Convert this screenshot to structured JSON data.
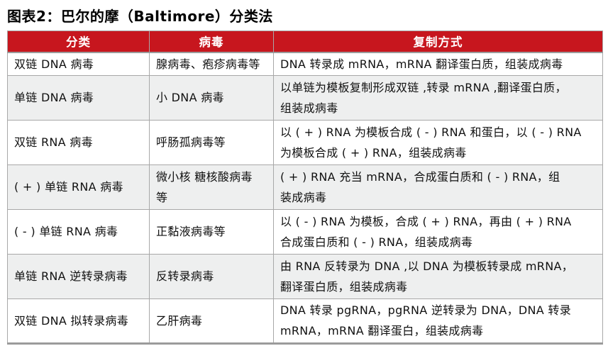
{
  "page": {
    "title": "图表2：巴尔的摩（Baltimore）分类法"
  },
  "colors": {
    "header_bg": "#C7161E",
    "header_text": "#FFFFFF",
    "row_alt_bg": "#EEEFEF",
    "border": "#A8A8A8",
    "border_dark": "#9B9B9B",
    "title_text": "#000000"
  },
  "table": {
    "headers": [
      "分类",
      "病毒",
      "复制方式"
    ],
    "rows": [
      {
        "category": "双链 DNA 病毒",
        "virus": "腺病毒、疱疹病毒等",
        "replication": "DNA 转录成 mRNA，mRNA 翻译蛋白质，组装成病毒"
      },
      {
        "category": "单链 DNA 病毒",
        "virus": "小 DNA 病毒",
        "replication": "以单链为模板复制形成双链 ,转录 mRNA ,翻译蛋白质，\n组装成病毒"
      },
      {
        "category": "双链 RNA 病毒",
        "virus": "呼肠孤病毒等",
        "replication": "以 ( + ) RNA 为模板合成 ( - ) RNA 和蛋白，以 ( - ) RNA\n为模板合成 ( + ) RNA，组装成病毒"
      },
      {
        "category": "( + ) 单链 RNA 病毒",
        "virus": "微小核 糖核酸病毒\n等",
        "replication": "( + ) RNA 充当 mRNA，合成蛋白质和 ( - ) RNA，组\n装成病毒"
      },
      {
        "category": "( - ) 单链 RNA 病毒",
        "virus": "正黏液病毒等",
        "replication": "以 ( - ) RNA 为模板，合成 ( + ) RNA，再由 ( + ) RNA\n合成蛋白质和 ( - ) RNA，组装成病毒"
      },
      {
        "category": "单链 RNA 逆转录病毒",
        "virus": "反转录病毒",
        "replication": "由 RNA 反转录为 DNA ,以 DNA 为模板转录成 mRNA，\n翻译蛋白质，组装成病毒"
      },
      {
        "category": "双链 DNA 拟转录病毒",
        "virus": "乙肝病毒",
        "replication": "DNA 转录 pgRNA，pgRNA 逆转录为 DNA，DNA 转录\nmRNA，mRNA 翻译蛋白，组装成病毒"
      }
    ]
  }
}
